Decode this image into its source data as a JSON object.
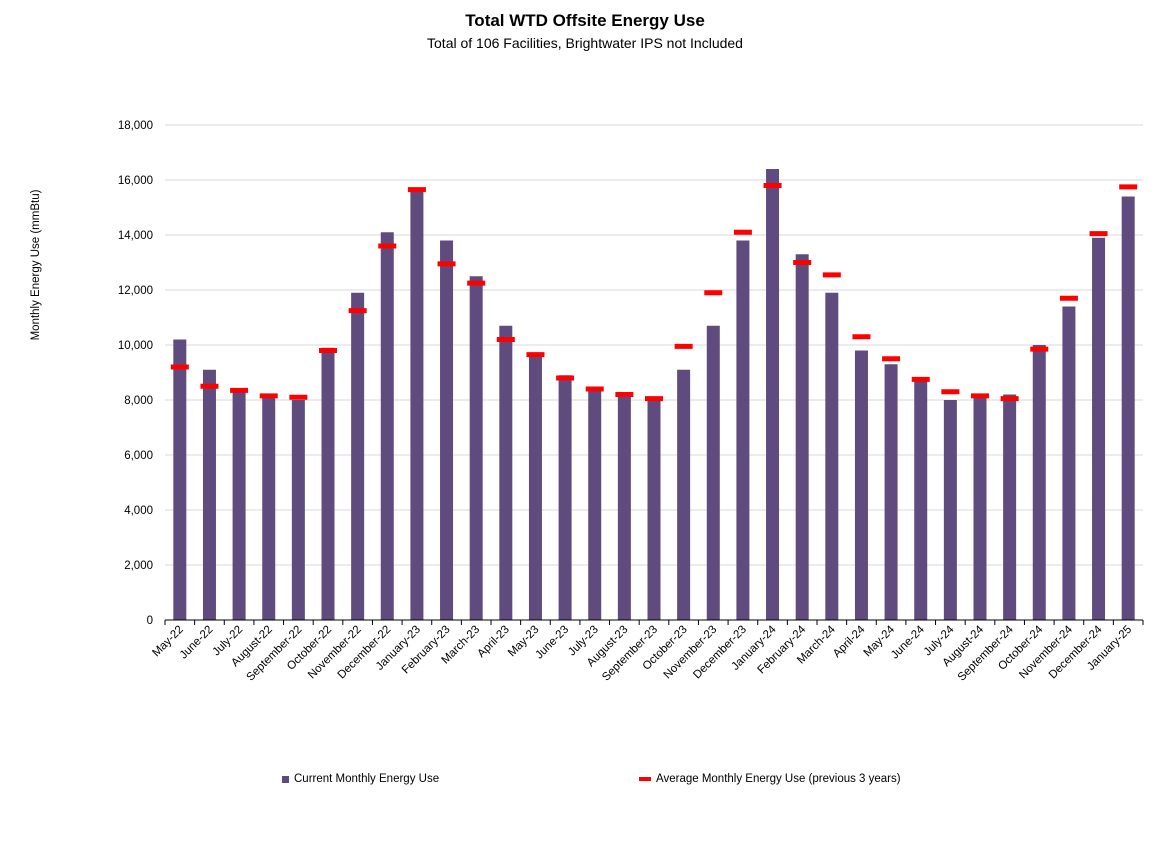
{
  "colors": {
    "bar": "#5f4b7e",
    "avg": "#ff0000",
    "grid": "#d9d9d9",
    "axis": "#000000"
  },
  "chart_data": {
    "type": "bar",
    "title": "Total WTD Offsite Energy Use",
    "subtitle": "Total of 106 Facilities, Brightwater IPS not Included",
    "ylabel": "Monthly Energy Use (mmBtu)",
    "xlabel": "",
    "ylim": [
      0,
      18000
    ],
    "yticks": [
      "0",
      "2,000",
      "4,000",
      "6,000",
      "8,000",
      "10,000",
      "12,000",
      "14,000",
      "16,000",
      "18,000"
    ],
    "grid": true,
    "legend_position": "bottom",
    "categories": [
      "May-22",
      "June-22",
      "July-22",
      "August-22",
      "September-22",
      "October-22",
      "November-22",
      "December-22",
      "January-23",
      "February-23",
      "March-23",
      "April-23",
      "May-23",
      "June-23",
      "July-23",
      "August-23",
      "September-23",
      "October-23",
      "November-23",
      "December-23",
      "January-24",
      "February-24",
      "March-24",
      "April-24",
      "May-24",
      "June-24",
      "July-24",
      "August-24",
      "September-24",
      "October-24",
      "November-24",
      "December-24",
      "January-25"
    ],
    "series": [
      {
        "name": "Current Monthly Energy Use",
        "type": "bar",
        "values": [
          10200,
          9100,
          8300,
          8100,
          8000,
          9900,
          11900,
          14100,
          15700,
          13800,
          12500,
          10700,
          9600,
          8900,
          8400,
          8200,
          8000,
          9100,
          10700,
          13800,
          16400,
          13300,
          11900,
          9800,
          9300,
          8800,
          8000,
          8100,
          8200,
          10000,
          11400,
          13900,
          15400
        ]
      },
      {
        "name": "Average Monthly Energy Use (previous 3 years)",
        "type": "marker",
        "values": [
          9200,
          8500,
          8350,
          8150,
          8100,
          9800,
          11250,
          13600,
          15650,
          12950,
          12250,
          10200,
          9650,
          8800,
          8400,
          8200,
          8050,
          9950,
          11900,
          14100,
          15800,
          13000,
          12550,
          10300,
          9500,
          8750,
          8300,
          8150,
          8050,
          9850,
          11700,
          14050,
          15750
        ]
      }
    ]
  }
}
